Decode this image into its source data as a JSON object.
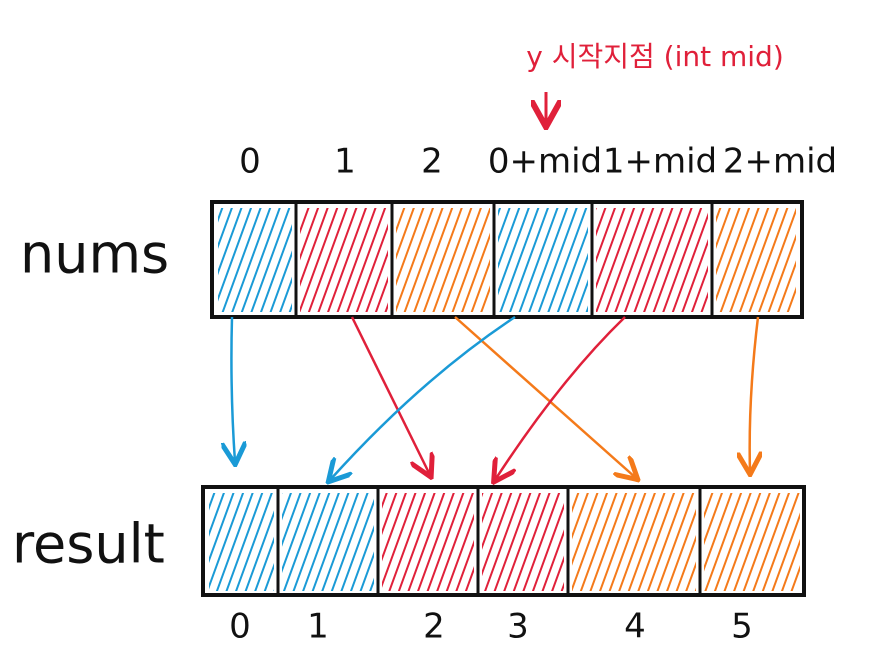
{
  "annotation": "y 시작지점 (int mid)",
  "nums": {
    "label": "nums",
    "indices": [
      "0",
      "1",
      "2",
      "0+mid",
      "1+mid",
      "2+mid"
    ]
  },
  "result": {
    "label": "result",
    "indices": [
      "0",
      "1",
      "2",
      "3",
      "4",
      "5"
    ]
  }
}
